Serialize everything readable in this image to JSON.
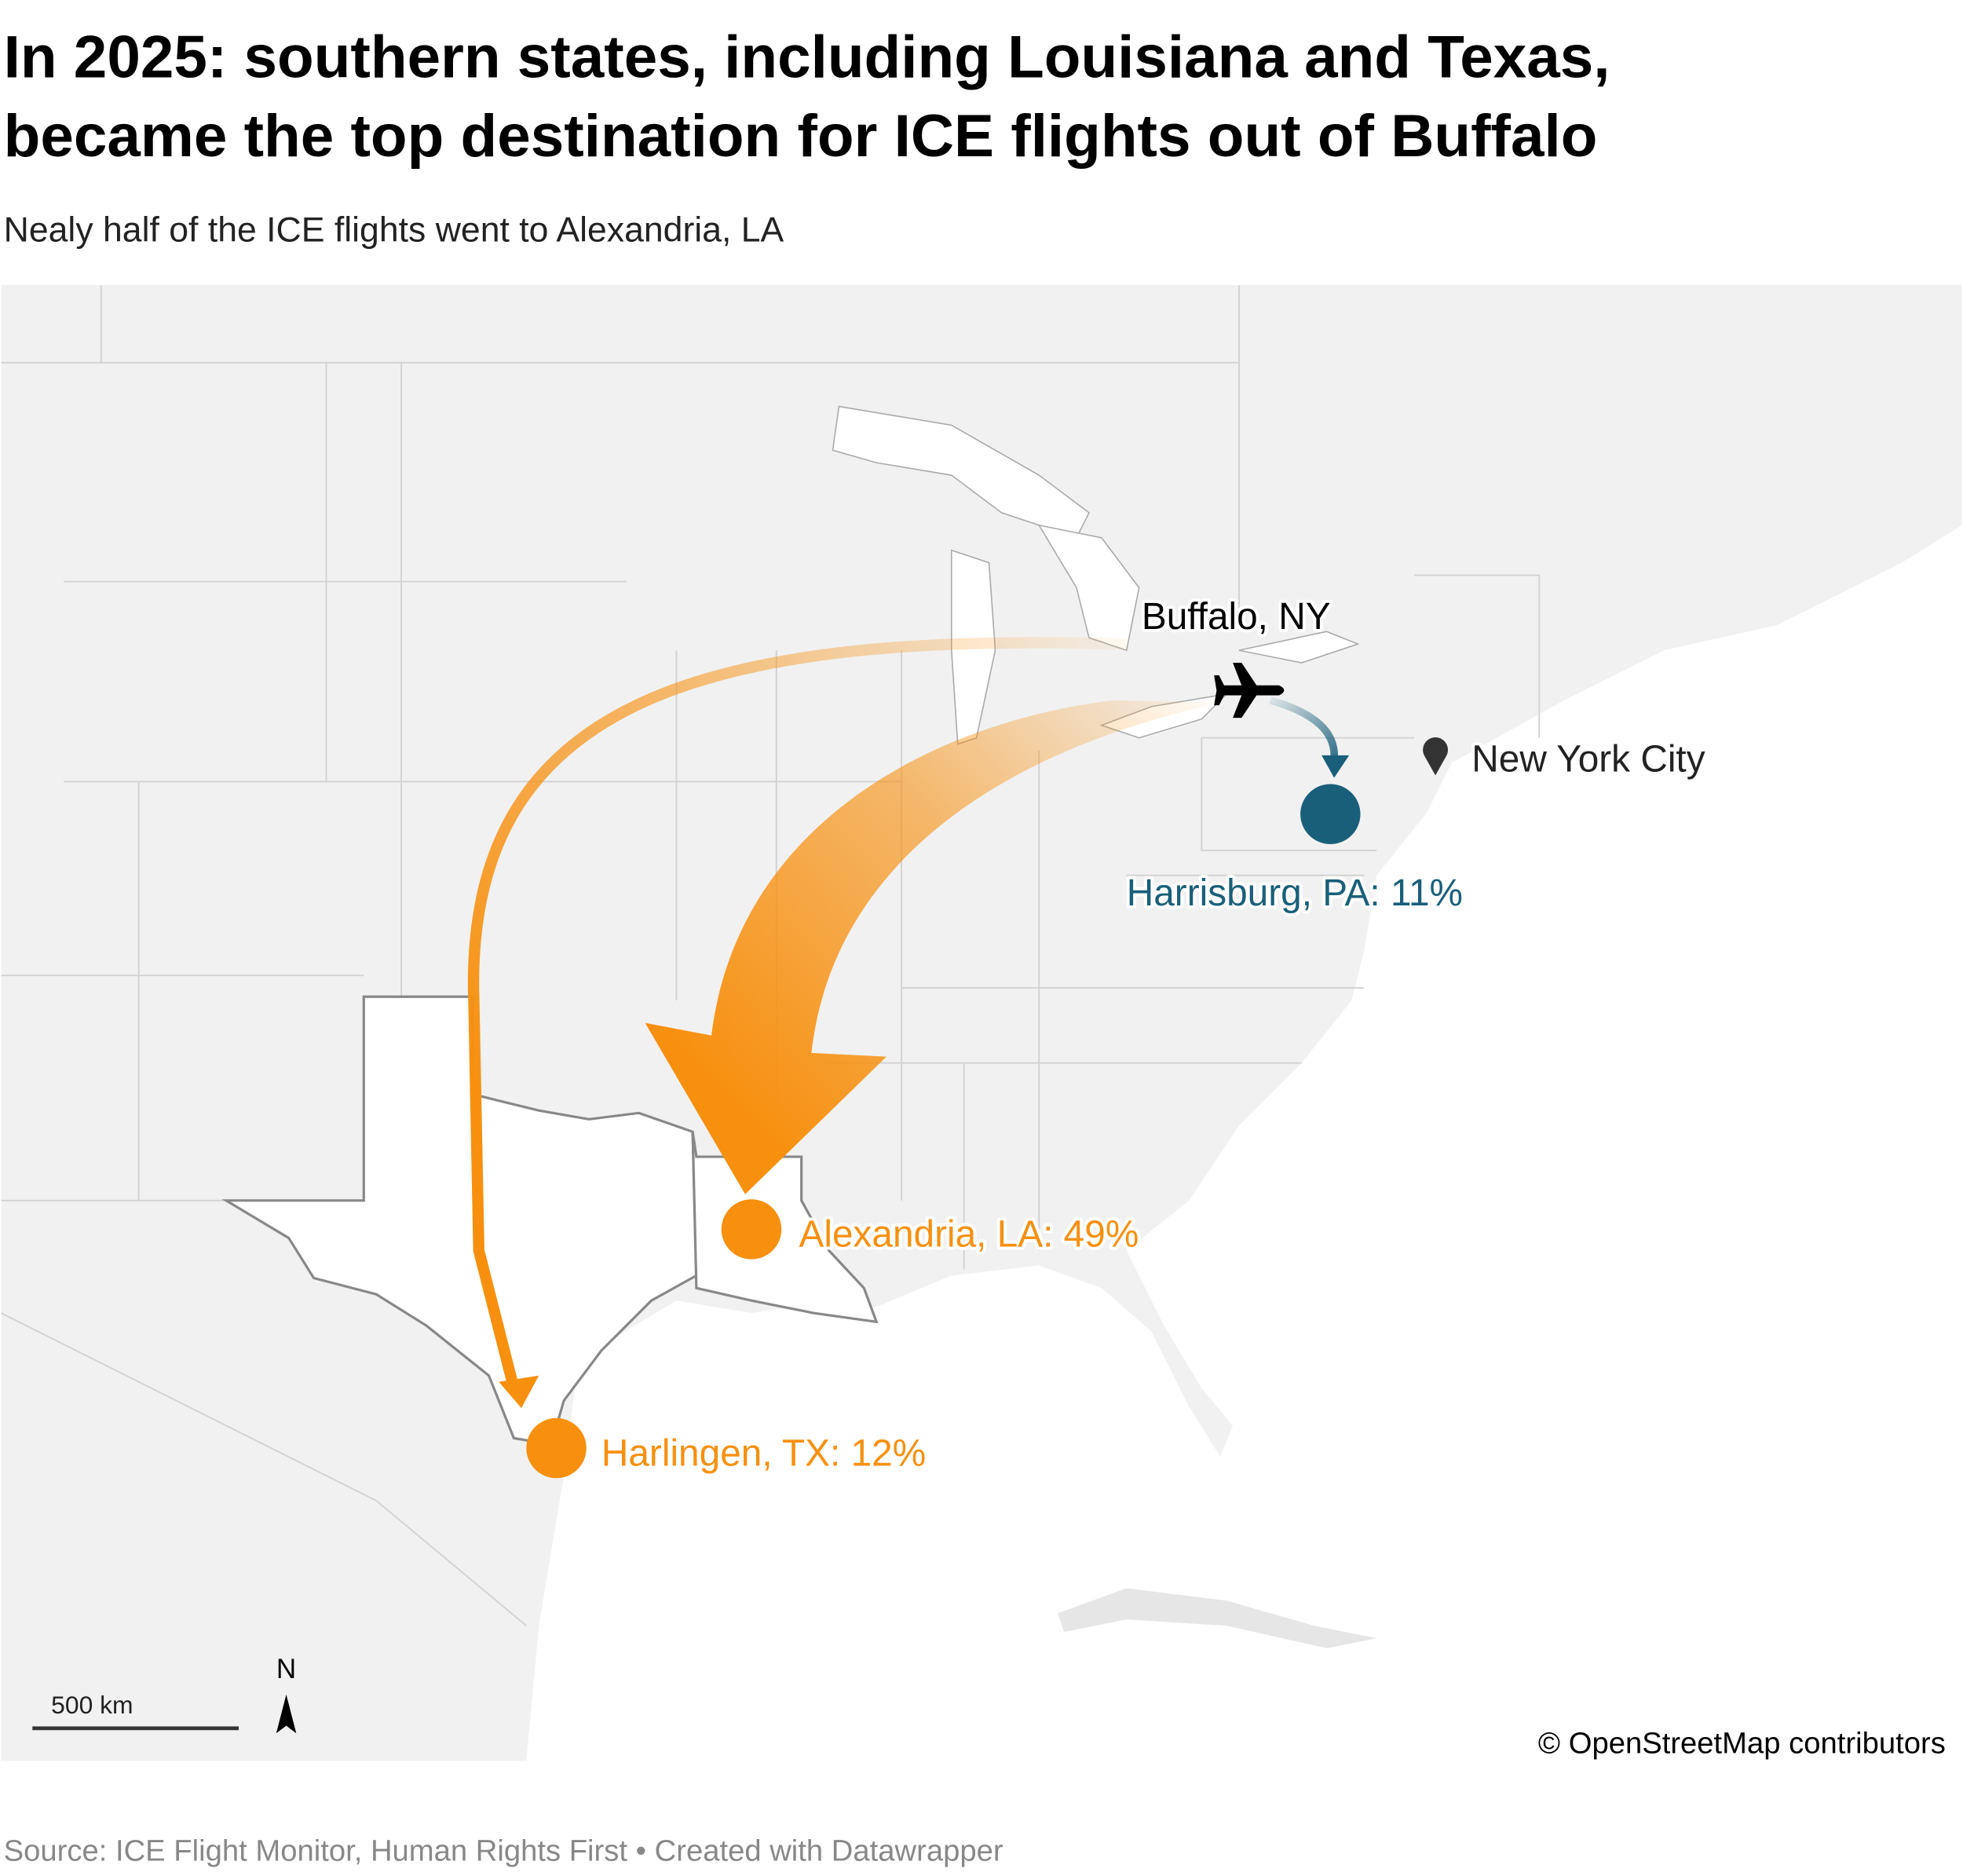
{
  "header": {
    "title": [
      "In 2025: southern states, including Louisiana and Texas,",
      "became the top destination for ICE flights out of Buffalo"
    ],
    "subtitle": "Nealy half of the ICE flights went to Alexandria, LA"
  },
  "map": {
    "labels": {
      "origin": "Buffalo, NY",
      "landmark": "New York City",
      "harrisburg": "Harrisburg, PA: 11%",
      "alexandria": "Alexandria, LA: 49%",
      "harlingen": "Harlingen, TX: 12%"
    },
    "scale_label": "500 km",
    "north_label": "N",
    "attribution": "© OpenStreetMap contributors"
  },
  "footer": {
    "source": "Source: ICE Flight Monitor, Human Rights First • Created with Datawrapper"
  }
}
